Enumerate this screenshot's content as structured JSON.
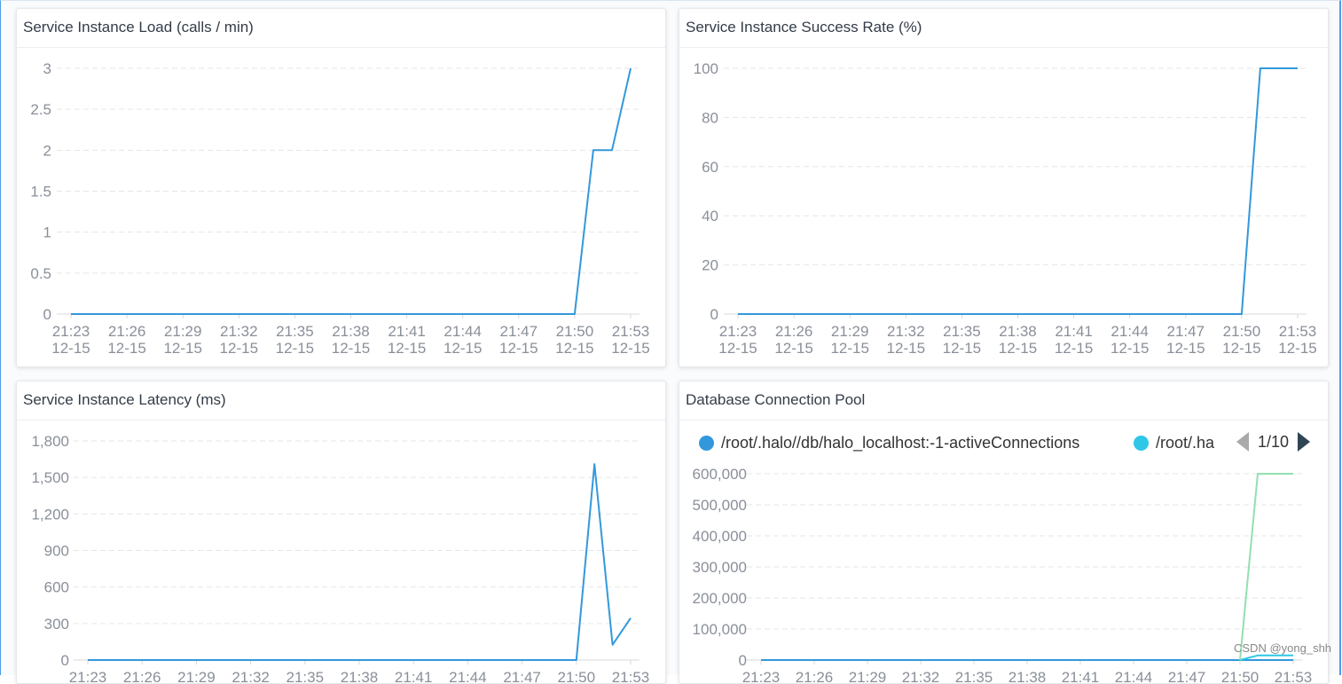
{
  "x_ticks": [
    "21:23",
    "21:26",
    "21:29",
    "21:32",
    "21:35",
    "21:38",
    "21:41",
    "21:44",
    "21:47",
    "21:50",
    "21:53"
  ],
  "x_date": "12-15",
  "watermark": "CSDN @yong_shh",
  "chart_data": [
    {
      "type": "line",
      "title": "Service Instance Load (calls / min)",
      "ylim": [
        0,
        3
      ],
      "y_ticks": [
        "0",
        "0.5",
        "1",
        "1.5",
        "2",
        "2.5",
        "3"
      ],
      "y_tick_values": [
        0,
        0.5,
        1,
        1.5,
        2,
        2.5,
        3
      ],
      "x_range": [
        "21:23",
        "21:53"
      ],
      "grid": true,
      "series": [
        {
          "color": "#3398db",
          "points": [
            [
              "21:23",
              0
            ],
            [
              "21:50",
              0
            ],
            [
              "21:51",
              2
            ],
            [
              "21:52",
              2
            ],
            [
              "21:53",
              3
            ]
          ]
        }
      ]
    },
    {
      "type": "line",
      "title": "Service Instance Success Rate (%)",
      "ylim": [
        0,
        100
      ],
      "y_ticks": [
        "0",
        "20",
        "40",
        "60",
        "80",
        "100"
      ],
      "y_tick_values": [
        0,
        20,
        40,
        60,
        80,
        100
      ],
      "x_range": [
        "21:23",
        "21:53"
      ],
      "grid": true,
      "series": [
        {
          "color": "#3398db",
          "points": [
            [
              "21:23",
              0
            ],
            [
              "21:50",
              0
            ],
            [
              "21:51",
              100
            ],
            [
              "21:52",
              100
            ],
            [
              "21:53",
              100
            ]
          ]
        }
      ]
    },
    {
      "type": "line",
      "title": "Service Instance Latency (ms)",
      "ylim": [
        0,
        1800
      ],
      "y_ticks": [
        "0",
        "300",
        "600",
        "900",
        "1,200",
        "1,500",
        "1,800"
      ],
      "y_tick_values": [
        0,
        300,
        600,
        900,
        1200,
        1500,
        1800
      ],
      "x_range": [
        "21:23",
        "21:53"
      ],
      "grid": true,
      "series": [
        {
          "color": "#3398db",
          "points": [
            [
              "21:23",
              0
            ],
            [
              "21:50",
              0
            ],
            [
              "21:51",
              1610
            ],
            [
              "21:52",
              125
            ],
            [
              "21:53",
              345
            ]
          ]
        }
      ]
    },
    {
      "type": "line",
      "title": "Database Connection Pool",
      "ylim": [
        0,
        600000
      ],
      "y_ticks": [
        "0",
        "100,000",
        "200,000",
        "300,000",
        "400,000",
        "500,000",
        "600,000"
      ],
      "y_tick_values": [
        0,
        100000,
        200000,
        300000,
        400000,
        500000,
        600000
      ],
      "x_range": [
        "21:23",
        "21:53"
      ],
      "grid": true,
      "legend": {
        "position": "top",
        "items": [
          {
            "name": "/root/.halo//db/halo_localhost:-1-activeConnections",
            "color": "#3398db"
          },
          {
            "name": "/root/.ha",
            "color": "#2ec7e8"
          }
        ],
        "page": "1/10"
      },
      "series": [
        {
          "color": "#e9a6e6",
          "points": [
            [
              "21:23",
              0
            ],
            [
              "21:53",
              0
            ]
          ]
        },
        {
          "color": "#3398db",
          "points": [
            [
              "21:23",
              0
            ],
            [
              "21:53",
              0
            ]
          ]
        },
        {
          "color": "#2ec7e8",
          "points": [
            [
              "21:50",
              0
            ],
            [
              "21:51",
              15000
            ],
            [
              "21:52",
              15000
            ],
            [
              "21:53",
              15000
            ]
          ]
        },
        {
          "color": "#92e0b0",
          "points": [
            [
              "21:50",
              0
            ],
            [
              "21:51",
              600000
            ],
            [
              "21:52",
              600000
            ],
            [
              "21:53",
              600000
            ]
          ]
        }
      ]
    }
  ]
}
